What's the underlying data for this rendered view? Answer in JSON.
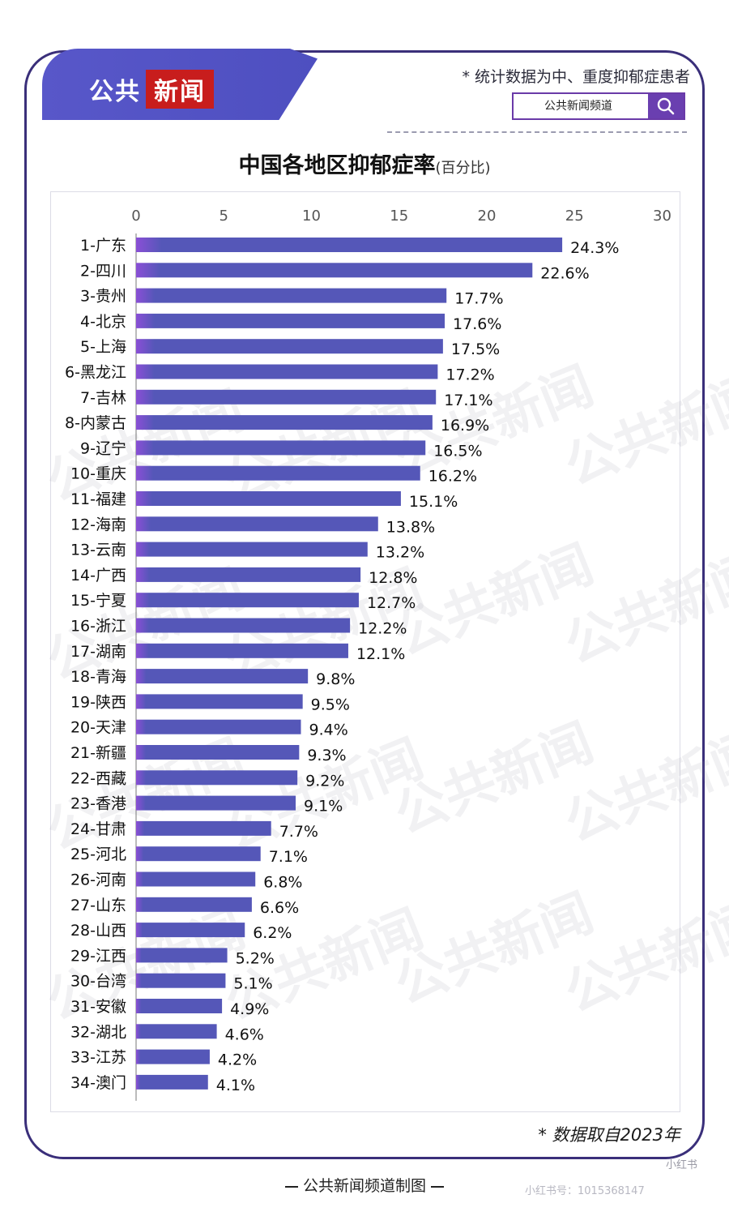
{
  "header": {
    "logo_part1": "公共",
    "logo_part2": "新闻",
    "note": "* 统计数据为中、重度抑郁症患者",
    "search_text": "公共新闻频道"
  },
  "chart_data": {
    "type": "bar",
    "orientation": "horizontal",
    "title": "中国各地区抑郁症率",
    "unit": "(百分比)",
    "xlim": [
      0,
      30
    ],
    "x_ticks": [
      "0",
      "5",
      "10",
      "15",
      "20",
      "25",
      "30"
    ],
    "grid": false,
    "bar_color": "#5557b8",
    "categories": [
      "1-广东",
      "2-四川",
      "3-贵州",
      "4-北京",
      "5-上海",
      "6-黑龙江",
      "7-吉林",
      "8-内蒙古",
      "9-辽宁",
      "10-重庆",
      "11-福建",
      "12-海南",
      "13-云南",
      "14-广西",
      "15-宁夏",
      "16-浙江",
      "17-湖南",
      "18-青海",
      "19-陕西",
      "20-天津",
      "21-新疆",
      "22-西藏",
      "23-香港",
      "24-甘肃",
      "25-河北",
      "26-河南",
      "27-山东",
      "28-山西",
      "29-江西",
      "30-台湾",
      "31-安徽",
      "32-湖北",
      "33-江苏",
      "34-澳门"
    ],
    "values": [
      24.3,
      22.6,
      17.7,
      17.6,
      17.5,
      17.2,
      17.1,
      16.9,
      16.5,
      16.2,
      15.1,
      13.8,
      13.2,
      12.8,
      12.7,
      12.2,
      12.1,
      9.8,
      9.5,
      9.4,
      9.3,
      9.2,
      9.1,
      7.7,
      7.1,
      6.8,
      6.6,
      6.2,
      5.2,
      5.1,
      4.9,
      4.6,
      4.2,
      4.1
    ],
    "value_labels": [
      "24.3%",
      "22.6%",
      "17.7%",
      "17.6%",
      "17.5%",
      "17.2%",
      "17.1%",
      "16.9%",
      "16.5%",
      "16.2%",
      "15.1%",
      "13.8%",
      "13.2%",
      "12.8%",
      "12.7%",
      "12.2%",
      "12.1%",
      "9.8%",
      "9.5%",
      "9.4%",
      "9.3%",
      "9.2%",
      "9.1%",
      "7.7%",
      "7.1%",
      "6.8%",
      "6.6%",
      "6.2%",
      "5.2%",
      "5.1%",
      "4.9%",
      "4.6%",
      "4.2%",
      "4.1%"
    ]
  },
  "watermark_text": "公共新闻",
  "footer": {
    "source_note": "* 数据取自2023年",
    "credit": "公共新闻频道制图",
    "badge": "小红书",
    "platform_id": "小红书号：1015368147"
  },
  "colors": {
    "accent": "#5557b8",
    "border": "#3a2f7a",
    "logo_red": "#c81d1d",
    "search_purple": "#6a3fb0"
  }
}
